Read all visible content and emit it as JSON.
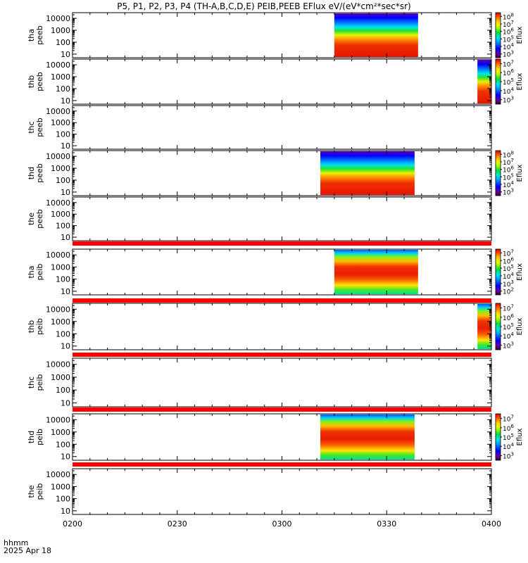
{
  "chart_data": {
    "type": "heatmap",
    "title": "P5, P1, P2, P3, P4 (TH-A,B,C,D,E) PEIB,PEEB EFlux eV/(eV*cm²*sec*sr)",
    "x_axis": {
      "date_label": "2025 Apr 18",
      "unit_label": "hhmm",
      "range": [
        "0200",
        "0400"
      ],
      "tick_labels": [
        "0200",
        "0230",
        "0300",
        "0330",
        "0400"
      ]
    },
    "y_axis": {
      "scale": "log",
      "tick_labels": [
        "10",
        "100",
        "1000",
        "10000"
      ]
    },
    "colorbar_label": "Eflux",
    "panels": [
      {
        "probe": "tha",
        "product": "peeb",
        "ylabel": [
          "tha",
          "peeb"
        ],
        "data_interval": [
          "0315",
          "0339"
        ],
        "colorbar_range": [
          "10^3",
          "10^8"
        ],
        "colorbar_ticks": [
          "10^3",
          "10^4",
          "10^5",
          "10^6",
          "10^7",
          "10^8"
        ]
      },
      {
        "probe": "thb",
        "product": "peeb",
        "ylabel": [
          "thb",
          "peeb"
        ],
        "data_interval": [
          "0356",
          "0400"
        ],
        "colorbar_range": [
          "10^3",
          "10^7"
        ],
        "colorbar_ticks": [
          "10^3",
          "10^4",
          "10^5",
          "10^6",
          "10^7"
        ]
      },
      {
        "probe": "thc",
        "product": "peeb",
        "ylabel": [
          "thc",
          "peeb"
        ],
        "data_interval": null
      },
      {
        "probe": "thd",
        "product": "peeb",
        "ylabel": [
          "thd",
          "peeb"
        ],
        "data_interval": [
          "0311",
          "0338"
        ],
        "colorbar_range": [
          "10^3",
          "10^8"
        ],
        "colorbar_ticks": [
          "10^3",
          "10^4",
          "10^5",
          "10^6",
          "10^7",
          "10^8"
        ]
      },
      {
        "probe": "the",
        "product": "peeb",
        "ylabel": [
          "the",
          "peeb"
        ],
        "data_interval": null
      },
      {
        "probe": "tha",
        "product": "peib",
        "ylabel": [
          "tha",
          "peib"
        ],
        "data_interval": [
          "0315",
          "0339"
        ],
        "colorbar_range": [
          "10^2",
          "10^7"
        ],
        "colorbar_ticks": [
          "10^2",
          "10^3",
          "10^4",
          "10^5",
          "10^6",
          "10^7"
        ]
      },
      {
        "probe": "thb",
        "product": "peib",
        "ylabel": [
          "thb",
          "peib"
        ],
        "data_interval": [
          "0356",
          "0400"
        ],
        "colorbar_range": [
          "10^3",
          "10^7"
        ],
        "colorbar_ticks": [
          "10^3",
          "10^4",
          "10^5",
          "10^6",
          "10^7"
        ]
      },
      {
        "probe": "thc",
        "product": "peib",
        "ylabel": [
          "thc",
          "peib"
        ],
        "data_interval": null
      },
      {
        "probe": "thd",
        "product": "peib",
        "ylabel": [
          "thd",
          "peib"
        ],
        "data_interval": [
          "0311",
          "0338"
        ],
        "colorbar_range": [
          "10^3",
          "10^7"
        ],
        "colorbar_ticks": [
          "10^3",
          "10^4",
          "10^5",
          "10^6",
          "10^7"
        ]
      },
      {
        "probe": "the",
        "product": "peib",
        "ylabel": [
          "the",
          "peib"
        ],
        "data_interval": null
      }
    ],
    "grid": false
  },
  "colors": {
    "separator_bar": "#ff0000",
    "axis": "#000000",
    "background": "#ffffff"
  }
}
